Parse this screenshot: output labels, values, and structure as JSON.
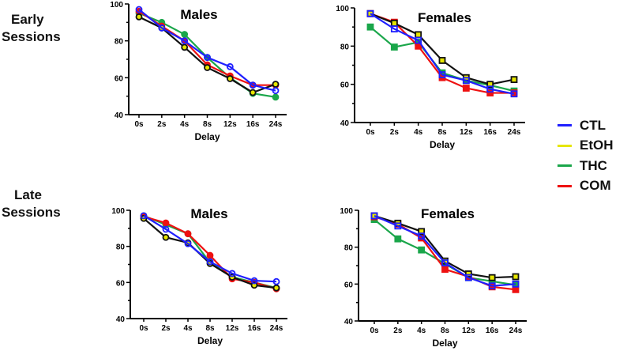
{
  "row_labels": {
    "early": [
      "Early",
      "Sessions"
    ],
    "late": [
      "Late",
      "Sessions"
    ]
  },
  "legend": [
    {
      "label": "CTL",
      "color": "#1f1fff"
    },
    {
      "label": "EtOH",
      "color": "#e6e600"
    },
    {
      "label": "THC",
      "color": "#1aa64a"
    },
    {
      "label": "COM",
      "color": "#ee1111"
    }
  ],
  "chart_data": [
    {
      "type": "line",
      "title": "Males",
      "session": "Early Sessions",
      "marker": "circle",
      "categories": [
        "0s",
        "2s",
        "4s",
        "8s",
        "12s",
        "16s",
        "24s"
      ],
      "xlabel": "Delay",
      "ylabel": "",
      "ylim": [
        40,
        100
      ],
      "yticks": [
        40,
        60,
        80,
        100
      ],
      "series": [
        {
          "name": "CTL",
          "values": [
            97,
            87,
            80,
            71,
            66,
            56,
            53
          ]
        },
        {
          "name": "EtOH",
          "values": [
            93,
            87,
            76.5,
            65.5,
            59.5,
            52,
            56.5
          ]
        },
        {
          "name": "THC",
          "values": [
            95,
            90,
            83.5,
            71,
            60,
            51.5,
            49.5
          ]
        },
        {
          "name": "COM",
          "values": [
            96,
            88,
            80,
            67,
            61,
            56,
            56
          ]
        }
      ]
    },
    {
      "type": "line",
      "title": "Females",
      "session": "Early Sessions",
      "marker": "square",
      "categories": [
        "0s",
        "2s",
        "4s",
        "8s",
        "12s",
        "16s",
        "24s"
      ],
      "xlabel": "Delay",
      "ylabel": "",
      "ylim": [
        40,
        100
      ],
      "yticks": [
        40,
        60,
        80,
        100
      ],
      "series": [
        {
          "name": "CTL",
          "values": [
            97,
            89,
            83,
            65,
            62,
            57.5,
            55
          ]
        },
        {
          "name": "EtOH",
          "values": [
            97,
            92,
            86,
            72.5,
            63.5,
            60,
            62.5
          ]
        },
        {
          "name": "THC",
          "values": [
            90,
            79.5,
            82,
            66,
            62,
            59.5,
            56.5
          ]
        },
        {
          "name": "COM",
          "values": [
            97,
            92.5,
            80,
            63.5,
            58,
            55.5,
            55.5
          ]
        }
      ]
    },
    {
      "type": "line",
      "title": "Males",
      "session": "Late Sessions",
      "marker": "circle",
      "categories": [
        "0s",
        "2s",
        "4s",
        "8s",
        "12s",
        "16s",
        "24s"
      ],
      "xlabel": "Delay",
      "ylabel": "",
      "ylim": [
        40,
        100
      ],
      "yticks": [
        40,
        60,
        80,
        100
      ],
      "series": [
        {
          "name": "CTL",
          "values": [
            97,
            89.5,
            81.5,
            71.5,
            65,
            61,
            60.5
          ]
        },
        {
          "name": "EtOH",
          "values": [
            95.5,
            85,
            82,
            70.5,
            63,
            58.5,
            57
          ]
        },
        {
          "name": "THC",
          "values": [
            97,
            92,
            87,
            71,
            63,
            60,
            57
          ]
        },
        {
          "name": "COM",
          "values": [
            96.5,
            93,
            87,
            75,
            62,
            60,
            56.5
          ]
        }
      ]
    },
    {
      "type": "line",
      "title": "Females",
      "session": "Late Sessions",
      "marker": "square",
      "categories": [
        "0s",
        "2s",
        "4s",
        "8s",
        "12s",
        "16s",
        "24s"
      ],
      "xlabel": "Delay",
      "ylabel": "",
      "ylim": [
        40,
        100
      ],
      "yticks": [
        40,
        60,
        80,
        100
      ],
      "series": [
        {
          "name": "CTL",
          "values": [
            97,
            91.5,
            86,
            71.5,
            63.5,
            59,
            60
          ]
        },
        {
          "name": "EtOH",
          "values": [
            97,
            93,
            88.5,
            72.5,
            65.5,
            63.5,
            64
          ]
        },
        {
          "name": "THC",
          "values": [
            95,
            84.5,
            78.5,
            71,
            63.5,
            61.5,
            59.5
          ]
        },
        {
          "name": "COM",
          "values": [
            96.5,
            92.5,
            85,
            68,
            64,
            58.5,
            57
          ]
        }
      ]
    }
  ]
}
